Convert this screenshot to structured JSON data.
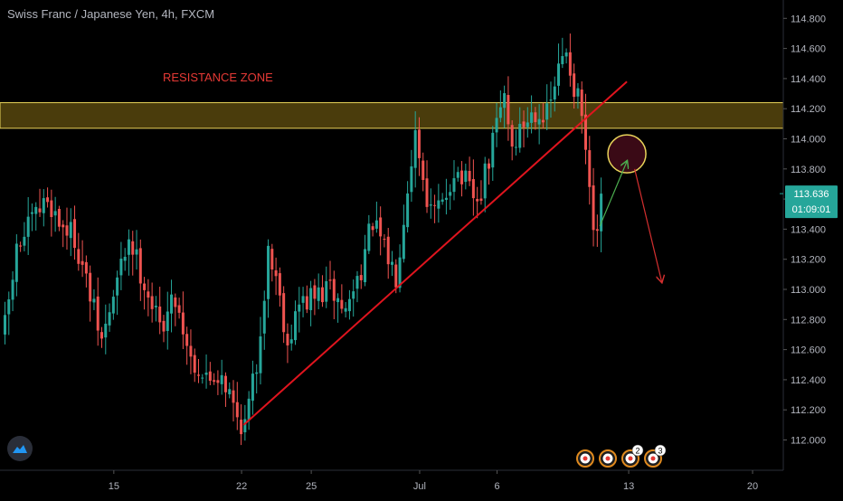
{
  "header": {
    "symbol": "Swiss Franc / Japanese Yen, 4h, FXCM"
  },
  "colors": {
    "background": "#000000",
    "up": "#26a69a",
    "down": "#ef5350",
    "grid": "#141414",
    "axis_text": "#b2b5be",
    "price_label_bg": "#26a69a",
    "trendline": "#e0141e",
    "zone_fill": "#4a3c0c",
    "zone_border": "#e8d35a",
    "annotation_text": "#e53935",
    "circle_fill": "#3a0a16",
    "circle_border": "#e8d35a",
    "arrow_up": "#4caf50",
    "arrow_down": "#d32f2f"
  },
  "chart_data": {
    "type": "candlestick",
    "title": "Swiss Franc / Japanese Yen, 4h, FXCM",
    "y_axis": {
      "ticks": [
        "114.800",
        "114.600",
        "114.400",
        "114.200",
        "114.000",
        "113.800",
        "113.600",
        "113.400",
        "113.200",
        "113.000",
        "112.800",
        "112.600",
        "112.400",
        "112.200",
        "112.000"
      ],
      "range": [
        111.8,
        115.05
      ]
    },
    "x_axis": {
      "ticks": [
        "15",
        "22",
        "25",
        "Jul",
        "6",
        "13",
        "20"
      ],
      "tick_bar_index": [
        28,
        61,
        79,
        107,
        127,
        161,
        193
      ]
    },
    "current_price": {
      "price": "113.636",
      "countdown": "01:09:01"
    },
    "grid": false,
    "candles": {
      "count": 155,
      "close_path": [
        [
          0,
          112.75
        ],
        [
          3,
          113.25
        ],
        [
          7,
          113.45
        ],
        [
          11,
          113.6
        ],
        [
          14,
          113.45
        ],
        [
          18,
          113.35
        ],
        [
          22,
          112.95
        ],
        [
          25,
          112.65
        ],
        [
          28,
          112.95
        ],
        [
          32,
          113.35
        ],
        [
          36,
          113.05
        ],
        [
          40,
          112.75
        ],
        [
          44,
          112.95
        ],
        [
          48,
          112.55
        ],
        [
          52,
          112.4
        ],
        [
          56,
          112.45
        ],
        [
          60,
          112.15
        ],
        [
          62,
          112.1
        ],
        [
          65,
          112.5
        ],
        [
          68,
          113.25
        ],
        [
          70,
          113.1
        ],
        [
          73,
          112.65
        ],
        [
          76,
          112.9
        ],
        [
          80,
          112.95
        ],
        [
          84,
          113.0
        ],
        [
          88,
          112.85
        ],
        [
          92,
          113.15
        ],
        [
          95,
          113.45
        ],
        [
          98,
          113.25
        ],
        [
          101,
          113.1
        ],
        [
          104,
          113.7
        ],
        [
          106,
          114.05
        ],
        [
          108,
          113.75
        ],
        [
          110,
          113.5
        ],
        [
          113,
          113.55
        ],
        [
          116,
          113.8
        ],
        [
          119,
          113.7
        ],
        [
          122,
          113.55
        ],
        [
          125,
          113.85
        ],
        [
          127,
          114.1
        ],
        [
          129,
          114.3
        ],
        [
          131,
          113.95
        ],
        [
          134,
          114.1
        ],
        [
          137,
          114.2
        ],
        [
          140,
          114.15
        ],
        [
          143,
          114.45
        ],
        [
          145,
          114.6
        ],
        [
          147,
          114.35
        ],
        [
          149,
          114.15
        ],
        [
          150,
          113.9
        ],
        [
          151,
          113.6
        ],
        [
          152,
          113.4
        ],
        [
          153,
          113.3
        ],
        [
          154,
          113.64
        ]
      ]
    },
    "annotations": {
      "resistance_zone": {
        "label": "RESISTANCE ZONE",
        "price_low": 114.07,
        "price_high": 114.24
      },
      "trendline": {
        "from": [
          62,
          112.1
        ],
        "to": [
          161,
          114.38
        ]
      },
      "target_circle": {
        "bar": 161,
        "price": 113.9
      },
      "up_arrow": {
        "from": [
          154,
          113.42
        ],
        "to": [
          161,
          113.85
        ]
      },
      "down_arrow": {
        "from": [
          163,
          113.8
        ],
        "to": [
          170,
          113.05
        ]
      }
    }
  },
  "bottom_markers": [
    {
      "name": "event-marker-1",
      "count": ""
    },
    {
      "name": "event-marker-2",
      "count": ""
    },
    {
      "name": "event-marker-3",
      "count": "2"
    },
    {
      "name": "event-marker-4",
      "count": "3"
    }
  ]
}
